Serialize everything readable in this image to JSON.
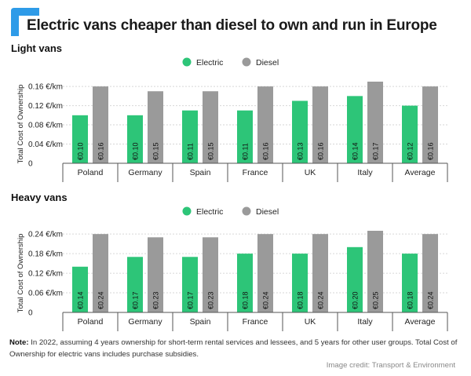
{
  "title": "Electric vans cheaper than diesel to own and run in Europe",
  "colors": {
    "electric": "#2dc578",
    "diesel": "#9a9a9a",
    "accent": "#2e9be8"
  },
  "chart_data": [
    {
      "type": "bar",
      "title": "Light vans",
      "ylabel": "Total Cost of Ownership",
      "ylim": [
        0,
        0.17
      ],
      "yticks": [
        0,
        0.04,
        0.08,
        0.12,
        0.16
      ],
      "ytick_labels": [
        "0",
        "0.04 €/km",
        "0.08 €/km",
        "0.12 €/km",
        "0.16 €/km"
      ],
      "categories": [
        "Poland",
        "Germany",
        "Spain",
        "France",
        "UK",
        "Italy",
        "Average"
      ],
      "legend": "top-center",
      "grid": true,
      "series": [
        {
          "name": "Electric",
          "values": [
            0.1,
            0.1,
            0.11,
            0.11,
            0.13,
            0.14,
            0.12
          ],
          "labels": [
            "€0.10",
            "€0.10",
            "€0.11",
            "€0.11",
            "€0.13",
            "€0.14",
            "€0.12"
          ]
        },
        {
          "name": "Diesel",
          "values": [
            0.16,
            0.15,
            0.15,
            0.16,
            0.16,
            0.17,
            0.16
          ],
          "labels": [
            "€0.16",
            "€0.15",
            "€0.15",
            "€0.16",
            "€0.16",
            "€0.17",
            "€0.16"
          ]
        }
      ]
    },
    {
      "type": "bar",
      "title": "Heavy vans",
      "ylabel": "Total Cost of Ownership",
      "ylim": [
        0,
        0.25
      ],
      "yticks": [
        0,
        0.06,
        0.12,
        0.18,
        0.24
      ],
      "ytick_labels": [
        "0",
        "0.06 €/km",
        "0.12 €/km",
        "0.18 €/km",
        "0.24 €/km"
      ],
      "categories": [
        "Poland",
        "Germany",
        "Spain",
        "France",
        "UK",
        "Italy",
        "Average"
      ],
      "legend": "top-center",
      "grid": true,
      "series": [
        {
          "name": "Electric",
          "values": [
            0.14,
            0.17,
            0.17,
            0.18,
            0.18,
            0.2,
            0.18
          ],
          "labels": [
            "€0.14",
            "€0.17",
            "€0.17",
            "€0.18",
            "€0.18",
            "€0.20",
            "€0.18"
          ]
        },
        {
          "name": "Diesel",
          "values": [
            0.24,
            0.23,
            0.23,
            0.24,
            0.24,
            0.25,
            0.24
          ],
          "labels": [
            "€0.24",
            "€0.23",
            "€0.23",
            "€0.24",
            "€0.24",
            "€0.25",
            "€0.24"
          ]
        }
      ]
    }
  ],
  "note": {
    "label": "Note:",
    "text": " In 2022, assuming 4 years ownership for short-term rental services and lessees, and 5 years for other user groups. Total Cost of Ownership for electric vans includes purchase subsidies."
  },
  "credit": "Image credit: Transport & Environment"
}
